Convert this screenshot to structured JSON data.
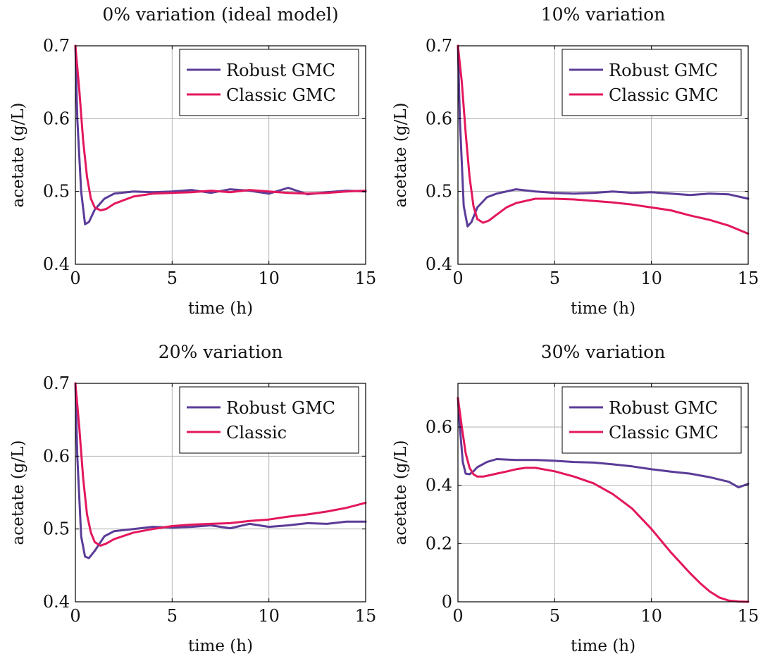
{
  "colors": {
    "robust": "#5b3c98",
    "classic": "#e3175e"
  },
  "chart_data": [
    {
      "type": "line",
      "title": "0% variation (ideal model)",
      "xlabel": "time (h)",
      "ylabel": "acetate (g/L)",
      "xlim": [
        0,
        15
      ],
      "ylim": [
        0.4,
        0.7
      ],
      "xticks": [
        0,
        5,
        10,
        15
      ],
      "xtick_labels": [
        "0",
        "5",
        "10",
        "15"
      ],
      "yticks": [
        0.4,
        0.5,
        0.6,
        0.7
      ],
      "ytick_labels": [
        "0.4",
        "0.5",
        "0.6",
        "0.7"
      ],
      "grid": true,
      "legend_position": "top-right",
      "series": [
        {
          "name": "Robust GMC",
          "color": "#5b3c98",
          "x": [
            0,
            0.1,
            0.3,
            0.5,
            0.7,
            1.0,
            1.5,
            2,
            3,
            4,
            5,
            6,
            7,
            8,
            9,
            10,
            11,
            12,
            13,
            14,
            15
          ],
          "y": [
            0.7,
            0.6,
            0.5,
            0.455,
            0.458,
            0.475,
            0.49,
            0.497,
            0.5,
            0.499,
            0.5,
            0.502,
            0.498,
            0.503,
            0.501,
            0.497,
            0.505,
            0.496,
            0.499,
            0.501,
            0.5
          ]
        },
        {
          "name": "Classic GMC",
          "color": "#e3175e",
          "x": [
            0,
            0.2,
            0.4,
            0.6,
            0.8,
            1.0,
            1.3,
            1.6,
            2,
            3,
            4,
            5,
            6,
            7,
            8,
            9,
            10,
            11,
            12,
            13,
            14,
            15
          ],
          "y": [
            0.7,
            0.64,
            0.57,
            0.52,
            0.49,
            0.478,
            0.474,
            0.476,
            0.483,
            0.493,
            0.497,
            0.498,
            0.499,
            0.501,
            0.499,
            0.502,
            0.5,
            0.498,
            0.497,
            0.498,
            0.5,
            0.501
          ]
        }
      ]
    },
    {
      "type": "line",
      "title": "10% variation",
      "xlabel": "time (h)",
      "ylabel": "acetate (g/L)",
      "xlim": [
        0,
        15
      ],
      "ylim": [
        0.4,
        0.7
      ],
      "xticks": [
        0,
        5,
        10,
        15
      ],
      "xtick_labels": [
        "0",
        "5",
        "10",
        "15"
      ],
      "yticks": [
        0.4,
        0.5,
        0.6,
        0.7
      ],
      "ytick_labels": [
        "0.4",
        "0.5",
        "0.6",
        "0.7"
      ],
      "grid": true,
      "legend_position": "top-right",
      "series": [
        {
          "name": "Robust GMC",
          "color": "#5b3c98",
          "x": [
            0,
            0.1,
            0.3,
            0.5,
            0.7,
            1.0,
            1.5,
            2,
            3,
            4,
            5,
            6,
            7,
            8,
            9,
            10,
            11,
            12,
            13,
            14,
            15
          ],
          "y": [
            0.7,
            0.6,
            0.48,
            0.452,
            0.458,
            0.478,
            0.492,
            0.497,
            0.503,
            0.5,
            0.498,
            0.497,
            0.498,
            0.5,
            0.498,
            0.499,
            0.497,
            0.495,
            0.497,
            0.496,
            0.49
          ]
        },
        {
          "name": "Classic GMC",
          "color": "#e3175e",
          "x": [
            0,
            0.2,
            0.4,
            0.6,
            0.8,
            1.0,
            1.3,
            1.6,
            2,
            2.5,
            3,
            4,
            5,
            6,
            7,
            8,
            9,
            10,
            11,
            12,
            13,
            14,
            15
          ],
          "y": [
            0.7,
            0.65,
            0.58,
            0.52,
            0.48,
            0.462,
            0.457,
            0.46,
            0.468,
            0.478,
            0.484,
            0.49,
            0.49,
            0.489,
            0.487,
            0.485,
            0.482,
            0.478,
            0.474,
            0.467,
            0.461,
            0.453,
            0.442
          ]
        }
      ]
    },
    {
      "type": "line",
      "title": "20% variation",
      "xlabel": "time (h)",
      "ylabel": "acetate (g/L)",
      "xlim": [
        0,
        15
      ],
      "ylim": [
        0.4,
        0.7
      ],
      "xticks": [
        0,
        5,
        10,
        15
      ],
      "xtick_labels": [
        "0",
        "5",
        "10",
        "15"
      ],
      "yticks": [
        0.4,
        0.5,
        0.6,
        0.7
      ],
      "ytick_labels": [
        "0.4",
        "0.5",
        "0.6",
        "0.7"
      ],
      "grid": true,
      "legend_position": "top-right",
      "series": [
        {
          "name": "Robust GMC",
          "color": "#5b3c98",
          "x": [
            0,
            0.1,
            0.3,
            0.5,
            0.7,
            1.0,
            1.5,
            2,
            3,
            4,
            5,
            6,
            7,
            8,
            9,
            10,
            11,
            12,
            13,
            14,
            15
          ],
          "y": [
            0.7,
            0.6,
            0.49,
            0.462,
            0.46,
            0.47,
            0.49,
            0.497,
            0.5,
            0.503,
            0.502,
            0.503,
            0.505,
            0.501,
            0.507,
            0.503,
            0.505,
            0.508,
            0.507,
            0.51,
            0.51
          ]
        },
        {
          "name": "Classic",
          "color": "#e3175e",
          "x": [
            0,
            0.2,
            0.4,
            0.6,
            0.8,
            1.0,
            1.3,
            1.6,
            2,
            3,
            4,
            5,
            6,
            7,
            8,
            9,
            10,
            11,
            12,
            13,
            14,
            15
          ],
          "y": [
            0.7,
            0.64,
            0.57,
            0.52,
            0.495,
            0.482,
            0.477,
            0.48,
            0.486,
            0.495,
            0.5,
            0.504,
            0.506,
            0.507,
            0.508,
            0.511,
            0.513,
            0.517,
            0.52,
            0.524,
            0.529,
            0.536
          ]
        }
      ]
    },
    {
      "type": "line",
      "title": "30% variation",
      "xlabel": "time (h)",
      "ylabel": "acetate (g/L)",
      "xlim": [
        0,
        15
      ],
      "ylim": [
        0,
        0.75
      ],
      "xticks": [
        0,
        5,
        10,
        15
      ],
      "xtick_labels": [
        "0",
        "5",
        "10",
        "15"
      ],
      "yticks": [
        0,
        0.2,
        0.4,
        0.6
      ],
      "ytick_labels": [
        "0",
        "0.2",
        "0.4",
        "0.6"
      ],
      "grid": true,
      "legend_position": "top-right",
      "series": [
        {
          "name": "Robust GMC",
          "color": "#5b3c98",
          "x": [
            0,
            0.1,
            0.25,
            0.4,
            0.6,
            0.8,
            1.0,
            1.5,
            2,
            3,
            4,
            5,
            6,
            7,
            8,
            9,
            10,
            11,
            12,
            13,
            14,
            14.5,
            15
          ],
          "y": [
            0.7,
            0.6,
            0.48,
            0.44,
            0.438,
            0.448,
            0.462,
            0.48,
            0.49,
            0.487,
            0.487,
            0.484,
            0.48,
            0.478,
            0.472,
            0.465,
            0.455,
            0.447,
            0.44,
            0.428,
            0.412,
            0.393,
            0.405
          ]
        },
        {
          "name": "Classic GMC",
          "color": "#e3175e",
          "x": [
            0,
            0.2,
            0.4,
            0.6,
            0.8,
            1.0,
            1.3,
            1.6,
            2,
            2.5,
            3,
            3.5,
            4,
            5,
            6,
            7,
            8,
            9,
            10,
            11,
            12,
            12.5,
            13,
            13.5,
            14,
            14.5,
            15
          ],
          "y": [
            0.7,
            0.6,
            0.51,
            0.46,
            0.438,
            0.43,
            0.43,
            0.434,
            0.44,
            0.447,
            0.455,
            0.46,
            0.46,
            0.448,
            0.43,
            0.407,
            0.37,
            0.32,
            0.25,
            0.17,
            0.098,
            0.065,
            0.036,
            0.015,
            0.004,
            0.001,
            0.0
          ]
        }
      ]
    }
  ]
}
